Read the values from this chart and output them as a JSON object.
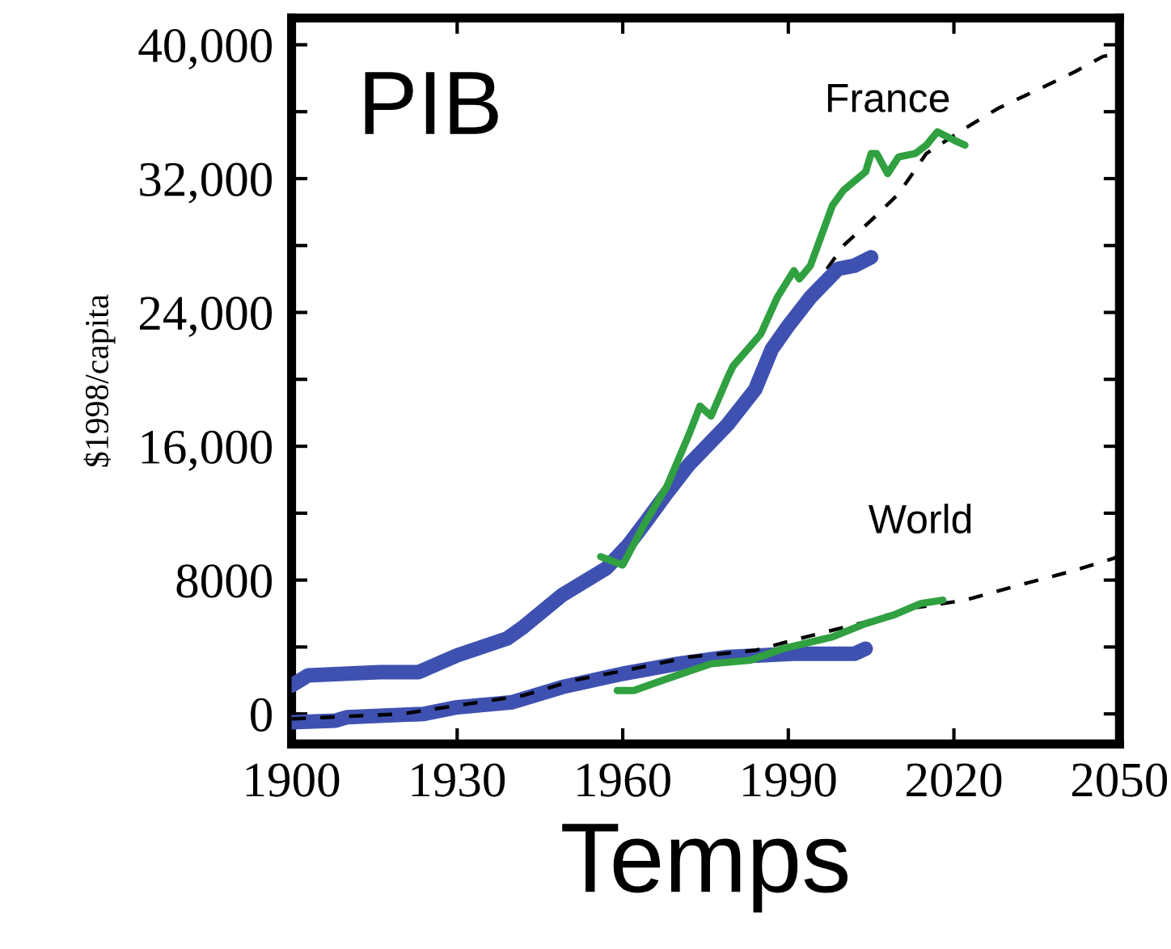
{
  "chart_data": {
    "type": "line",
    "title": "PIB",
    "xlabel": "Temps",
    "ylabel": "$1998/capita",
    "xlim": [
      1900,
      2050
    ],
    "xticks": [
      1900,
      1930,
      1960,
      1990,
      2020,
      2050
    ],
    "ylim": [
      -1800,
      41600
    ],
    "yticks": [
      0,
      {
        "value": 4000,
        "label": null
      },
      8000,
      {
        "value": 12000,
        "label": null
      },
      {
        "value": 16000,
        "label": "16,000"
      },
      {
        "value": 20000,
        "label": null
      },
      {
        "value": 24000,
        "label": "24,000"
      },
      {
        "value": 28000,
        "label": null
      },
      {
        "value": 32000,
        "label": "32,000"
      },
      {
        "value": 36000,
        "label": null
      },
      {
        "value": 40000,
        "label": "40,000"
      }
    ],
    "grid": false,
    "annotations": [
      "France",
      "World"
    ],
    "series": [
      {
        "color": "#000000",
        "line_style": "dashed",
        "x": [
          1997,
          2000,
          2005,
          2010,
          2015,
          2022,
          2028,
          2037,
          2042,
          2047,
          2050
        ],
        "values": [
          26600,
          28000,
          29500,
          31100,
          33500,
          35000,
          36200,
          37600,
          38400,
          39300,
          39500
        ]
      },
      {
        "color": "#3f51b0",
        "x": [
          1900,
          1903,
          1916,
          1923,
          1930,
          1939,
          1942,
          1949,
          1957,
          1961,
          1964,
          1968,
          1972,
          1979,
          1984,
          1987,
          1990,
          1994,
          1999,
          2002,
          2005
        ],
        "values": [
          1700,
          2300,
          2500,
          2500,
          3500,
          4500,
          5200,
          7100,
          8700,
          10100,
          11400,
          13200,
          14900,
          17300,
          19400,
          21800,
          23200,
          24900,
          26600,
          26800,
          27300
        ]
      },
      {
        "color": "#3f51b0",
        "x": [
          1900,
          1908,
          1910,
          1924,
          1930,
          1940,
          1949,
          1960,
          1970,
          1979,
          1991,
          2002,
          2004
        ],
        "values": [
          -500,
          -400,
          -200,
          0,
          400,
          700,
          1600,
          2400,
          3000,
          3400,
          3600,
          3600,
          3900
        ]
      },
      {
        "color": "#000000",
        "line_style": "dashed",
        "x": [
          1900,
          1920,
          1930,
          1942,
          1951,
          1962,
          1972,
          1984,
          1992,
          2004,
          2012,
          2022,
          2033,
          2041,
          2049,
          2050
        ],
        "values": [
          -300,
          0,
          500,
          1100,
          2000,
          2700,
          3400,
          3800,
          4500,
          5500,
          6300,
          6800,
          7800,
          8500,
          9300,
          9500
        ]
      },
      {
        "color": "#30a040",
        "x": [
          1956,
          1960,
          1964,
          1968,
          1972,
          1974,
          1976,
          1979,
          1980,
          1985,
          1988,
          1991,
          1992,
          1994,
          1995,
          1998,
          2000,
          2004,
          2005,
          2006,
          2008,
          2010,
          2013,
          2015,
          2017,
          2020,
          2022
        ],
        "values": [
          9400,
          8900,
          11400,
          13600,
          16700,
          18400,
          17800,
          20100,
          20800,
          22700,
          24900,
          26500,
          26000,
          26800,
          27700,
          30400,
          31300,
          32400,
          33500,
          33500,
          32300,
          33300,
          33500,
          34000,
          34800,
          34300,
          34000
        ]
      },
      {
        "color": "#30a040",
        "x": [
          1959,
          1962,
          1968,
          1976,
          1983,
          1989,
          1998,
          2004,
          2009,
          2014,
          2018
        ],
        "values": [
          1400,
          1400,
          2100,
          3000,
          3200,
          3900,
          4600,
          5400,
          5900,
          6600,
          6800
        ]
      }
    ]
  }
}
